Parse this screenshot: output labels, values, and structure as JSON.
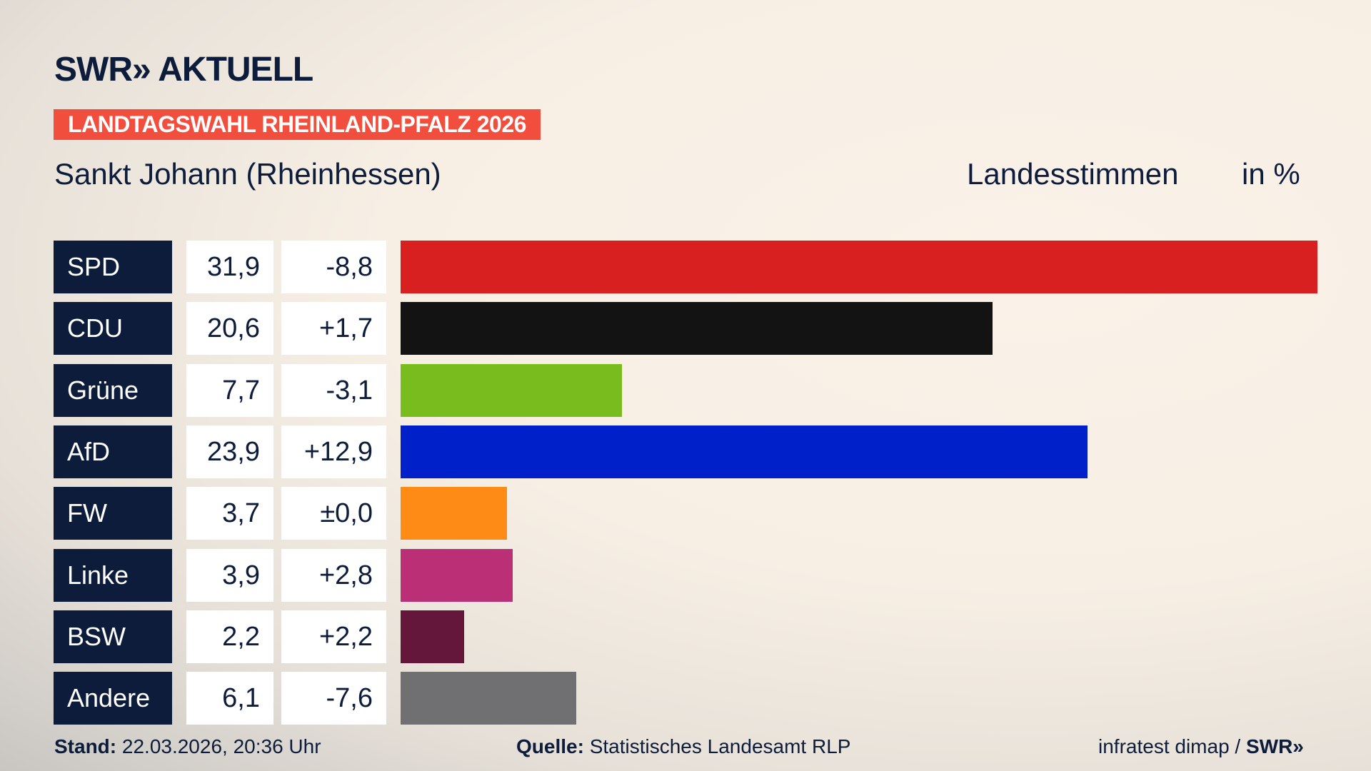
{
  "brand": {
    "logo": "SWR» AKTUELL",
    "banner": "LANDTAGSWAHL RHEINLAND-PFALZ 2026",
    "banner_color": "#f24e3e"
  },
  "header": {
    "subtitle": "Sankt Johann (Rheinhessen)",
    "measure_label": "Landesstimmen",
    "unit_label": "in %"
  },
  "chart_data": {
    "type": "bar",
    "orientation": "horizontal",
    "categories": [
      "SPD",
      "CDU",
      "Grüne",
      "AfD",
      "FW",
      "Linke",
      "BSW",
      "Andere"
    ],
    "values": [
      31.9,
      20.6,
      7.7,
      23.9,
      3.7,
      3.9,
      2.2,
      6.1
    ],
    "values_text": [
      "31,9",
      "20,6",
      "7,7",
      "23,9",
      "3,7",
      "3,9",
      "2,2",
      "6,1"
    ],
    "changes_text": [
      "-8,8",
      "+1,7",
      "-3,1",
      "+12,9",
      "±0,0",
      "+2,8",
      "+2,2",
      "-7,6"
    ],
    "colors": [
      "#d82020",
      "#131313",
      "#78bc1e",
      "#0021c9",
      "#fe8b16",
      "#bb2f76",
      "#64173b",
      "#707073"
    ],
    "xlim": [
      0,
      31.9
    ]
  },
  "footer": {
    "stand_label": "Stand:",
    "stand_value": "22.03.2026, 20:36 Uhr",
    "source_label": "Quelle:",
    "source_value": "Statistisches Landesamt RLP",
    "credit": "infratest dimap /",
    "credit_logo": "SWR»"
  }
}
